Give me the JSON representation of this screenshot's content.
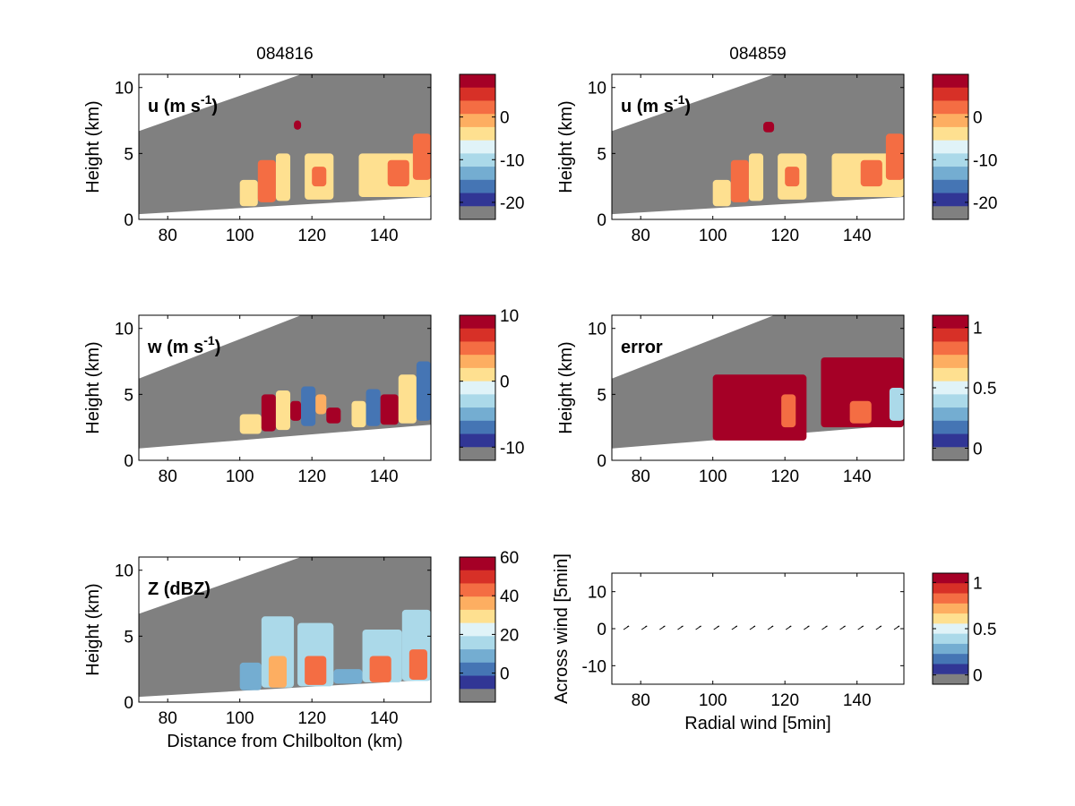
{
  "figure": {
    "titles": [
      "084816",
      "084859"
    ],
    "colormap": [
      "#a50026",
      "#d73027",
      "#f46d43",
      "#fdae61",
      "#fee090",
      "#e0f3f8",
      "#abd9e9",
      "#74add1",
      "#4575b4",
      "#313695",
      "#808080"
    ],
    "background_color": "#808080"
  },
  "chart_data": [
    {
      "type": "heatmap",
      "panel": "u left",
      "column_title": "084816",
      "label": "u (m s-1)",
      "label_main": "u (m s",
      "label_sup": "-1",
      "label_close": ")",
      "ylabel": "Height (km)",
      "xlabel": "",
      "xlim": [
        72,
        153
      ],
      "ylim": [
        0,
        11
      ],
      "xticks": [
        80,
        100,
        120,
        140
      ],
      "yticks": [
        0,
        5,
        10
      ],
      "colorbar": {
        "ticks": [
          0,
          -10,
          -20
        ],
        "tick_labels": [
          "0",
          "-10",
          "-20"
        ],
        "range": [
          -24,
          10
        ]
      },
      "top_boundary": [
        [
          72,
          6.7
        ],
        [
          117,
          11
        ]
      ],
      "bottom_boundary": [
        [
          72,
          0.4
        ],
        [
          153,
          1.7
        ]
      ],
      "cells": [
        {
          "x": [
            100,
            105
          ],
          "y": [
            1,
            3
          ],
          "v": -7
        },
        {
          "x": [
            105,
            110
          ],
          "y": [
            1.3,
            4.5
          ],
          "v": 1
        },
        {
          "x": [
            110,
            114
          ],
          "y": [
            1.4,
            5
          ],
          "v": -6
        },
        {
          "x": [
            115,
            117
          ],
          "y": [
            6.8,
            7.5
          ],
          "v": 9
        },
        {
          "x": [
            118,
            126
          ],
          "y": [
            1.5,
            5
          ],
          "v": -7
        },
        {
          "x": [
            120,
            124
          ],
          "y": [
            2.5,
            4
          ],
          "v": 2
        },
        {
          "x": [
            133,
            153
          ],
          "y": [
            1.7,
            5
          ],
          "v": -7
        },
        {
          "x": [
            141,
            147
          ],
          "y": [
            2.5,
            4.5
          ],
          "v": 1
        },
        {
          "x": [
            148,
            153
          ],
          "y": [
            3,
            6.5
          ],
          "v": 0
        }
      ]
    },
    {
      "type": "heatmap",
      "panel": "u right",
      "column_title": "084859",
      "label": "u (m s-1)",
      "label_main": "u (m s",
      "label_sup": "-1",
      "label_close": ")",
      "ylabel": "Height (km)",
      "xlabel": "",
      "xlim": [
        72,
        153
      ],
      "ylim": [
        0,
        11
      ],
      "xticks": [
        80,
        100,
        120,
        140
      ],
      "yticks": [
        0,
        5,
        10
      ],
      "colorbar": {
        "ticks": [
          0,
          -10,
          -20
        ],
        "tick_labels": [
          "0",
          "-10",
          "-20"
        ],
        "range": [
          -24,
          10
        ]
      },
      "top_boundary": [
        [
          72,
          6.7
        ],
        [
          117,
          11
        ]
      ],
      "bottom_boundary": [
        [
          72,
          0.4
        ],
        [
          153,
          1.7
        ]
      ],
      "cells": [
        {
          "x": [
            100,
            105
          ],
          "y": [
            1,
            3
          ],
          "v": -7
        },
        {
          "x": [
            105,
            110
          ],
          "y": [
            1.3,
            4.5
          ],
          "v": 1
        },
        {
          "x": [
            110,
            114
          ],
          "y": [
            1.4,
            5
          ],
          "v": -6
        },
        {
          "x": [
            114,
            117
          ],
          "y": [
            6.6,
            7.4
          ],
          "v": 9
        },
        {
          "x": [
            118,
            126
          ],
          "y": [
            1.5,
            5
          ],
          "v": -7
        },
        {
          "x": [
            120,
            124
          ],
          "y": [
            2.5,
            4
          ],
          "v": 2
        },
        {
          "x": [
            133,
            153
          ],
          "y": [
            1.7,
            5
          ],
          "v": -7
        },
        {
          "x": [
            141,
            147
          ],
          "y": [
            2.5,
            4.5
          ],
          "v": 1
        },
        {
          "x": [
            148,
            153
          ],
          "y": [
            3,
            6.5
          ],
          "v": 0
        }
      ]
    },
    {
      "type": "heatmap",
      "panel": "w",
      "column_title": "",
      "label": "w (m s-1)",
      "label_main": "w (m s",
      "label_sup": "-1",
      "label_close": ")",
      "ylabel": "Height (km)",
      "xlabel": "",
      "xlim": [
        72,
        153
      ],
      "ylim": [
        0,
        11
      ],
      "xticks": [
        80,
        100,
        120,
        140
      ],
      "yticks": [
        0,
        5,
        10
      ],
      "colorbar": {
        "ticks": [
          10,
          0,
          -10
        ],
        "tick_labels": [
          "10",
          "0",
          "-10"
        ],
        "range": [
          -12,
          10
        ]
      },
      "top_boundary": [
        [
          72,
          6.2
        ],
        [
          117,
          11
        ]
      ],
      "bottom_boundary": [
        [
          72,
          0.9
        ],
        [
          153,
          2.7
        ]
      ],
      "cells": [
        {
          "x": [
            100,
            106
          ],
          "y": [
            2,
            3.5
          ],
          "v": 1
        },
        {
          "x": [
            106,
            110
          ],
          "y": [
            2.2,
            5
          ],
          "v": 9
        },
        {
          "x": [
            110,
            114
          ],
          "y": [
            2.3,
            5.3
          ],
          "v": 0
        },
        {
          "x": [
            114,
            117
          ],
          "y": [
            3,
            4.5
          ],
          "v": 8
        },
        {
          "x": [
            117,
            121
          ],
          "y": [
            2.6,
            5.6
          ],
          "v": -9
        },
        {
          "x": [
            121,
            124
          ],
          "y": [
            3.5,
            5
          ],
          "v": 3
        },
        {
          "x": [
            124,
            128
          ],
          "y": [
            2.8,
            4
          ],
          "v": 9
        },
        {
          "x": [
            131,
            135
          ],
          "y": [
            2.5,
            4.5
          ],
          "v": 1
        },
        {
          "x": [
            135,
            139
          ],
          "y": [
            2.6,
            5.4
          ],
          "v": -8
        },
        {
          "x": [
            139,
            144
          ],
          "y": [
            2.7,
            5
          ],
          "v": 9
        },
        {
          "x": [
            144,
            149
          ],
          "y": [
            2.8,
            6.5
          ],
          "v": 0
        },
        {
          "x": [
            149,
            153
          ],
          "y": [
            3,
            7.5
          ],
          "v": -9
        }
      ]
    },
    {
      "type": "heatmap",
      "panel": "error",
      "column_title": "",
      "label": "error",
      "label_main": "error",
      "label_sup": "",
      "label_close": "",
      "ylabel": "Height (km)",
      "xlabel": "",
      "xlim": [
        72,
        153
      ],
      "ylim": [
        0,
        11
      ],
      "xticks": [
        80,
        100,
        120,
        140
      ],
      "yticks": [
        0,
        5,
        10
      ],
      "colorbar": {
        "ticks": [
          1,
          0.5,
          0
        ],
        "tick_labels": [
          "1",
          "0.5",
          "0"
        ],
        "range": [
          -0.1,
          1.1
        ]
      },
      "top_boundary": [
        [
          72,
          6.2
        ],
        [
          117,
          11
        ]
      ],
      "bottom_boundary": [
        [
          72,
          0.9
        ],
        [
          153,
          2.7
        ]
      ],
      "cells": [
        {
          "x": [
            100,
            126
          ],
          "y": [
            1.5,
            6.5
          ],
          "v": 1.05
        },
        {
          "x": [
            119,
            123
          ],
          "y": [
            2.5,
            5
          ],
          "v": 0.75
        },
        {
          "x": [
            130,
            153
          ],
          "y": [
            2.5,
            7.8
          ],
          "v": 1.05
        },
        {
          "x": [
            138,
            144
          ],
          "y": [
            2.8,
            4.5
          ],
          "v": 0.75
        },
        {
          "x": [
            149,
            153
          ],
          "y": [
            3,
            5.5
          ],
          "v": 0.3
        }
      ]
    },
    {
      "type": "heatmap",
      "panel": "Z",
      "column_title": "",
      "label": "Z (dBZ)",
      "label_main": "Z (dBZ)",
      "label_sup": "",
      "label_close": "",
      "ylabel": "Height (km)",
      "xlabel": "Distance from Chilbolton (km)",
      "xlim": [
        72,
        153
      ],
      "ylim": [
        0,
        11
      ],
      "xticks": [
        80,
        100,
        120,
        140
      ],
      "yticks": [
        0,
        5,
        10
      ],
      "colorbar": {
        "ticks": [
          60,
          40,
          20,
          0
        ],
        "tick_labels": [
          "60",
          "40",
          "20",
          "0"
        ],
        "range": [
          -15,
          60
        ]
      },
      "top_boundary": [
        [
          72,
          6.7
        ],
        [
          117,
          11
        ]
      ],
      "bottom_boundary": [
        [
          72,
          0.4
        ],
        [
          153,
          1.7
        ]
      ],
      "cells": [
        {
          "x": [
            100,
            106
          ],
          "y": [
            0.9,
            3
          ],
          "v": 5
        },
        {
          "x": [
            106,
            115
          ],
          "y": [
            1.1,
            6.5
          ],
          "v": 12
        },
        {
          "x": [
            108,
            113
          ],
          "y": [
            1.1,
            3.5
          ],
          "v": 32
        },
        {
          "x": [
            116,
            126
          ],
          "y": [
            1.2,
            6
          ],
          "v": 12
        },
        {
          "x": [
            118,
            124
          ],
          "y": [
            1.3,
            3.5
          ],
          "v": 38
        },
        {
          "x": [
            126,
            134
          ],
          "y": [
            1.4,
            2.5
          ],
          "v": 3
        },
        {
          "x": [
            134,
            145
          ],
          "y": [
            1.5,
            5.5
          ],
          "v": 12
        },
        {
          "x": [
            136,
            142
          ],
          "y": [
            1.5,
            3.5
          ],
          "v": 40
        },
        {
          "x": [
            145,
            153
          ],
          "y": [
            1.6,
            7
          ],
          "v": 12
        },
        {
          "x": [
            147,
            152
          ],
          "y": [
            1.7,
            4
          ],
          "v": 40
        }
      ]
    },
    {
      "type": "scatter",
      "panel": "wind",
      "xlabel": "Radial wind [5min]",
      "ylabel": "Across wind [5min]",
      "xlim": [
        72,
        153
      ],
      "ylim": [
        -15,
        15
      ],
      "xticks": [
        80,
        100,
        120,
        140
      ],
      "yticks": [
        -10,
        0,
        10
      ],
      "colorbar": {
        "ticks": [
          1,
          0.5,
          0
        ],
        "tick_labels": [
          "1",
          "0.5",
          "0"
        ],
        "range": [
          -0.1,
          1.1
        ]
      },
      "x": [
        76,
        81,
        86,
        91,
        96,
        101,
        106,
        111,
        116,
        121,
        126,
        131,
        136,
        141,
        146,
        151
      ],
      "y": [
        0,
        0,
        0,
        0,
        0,
        0,
        0,
        0,
        0,
        0,
        0,
        0,
        0,
        0,
        0,
        0
      ]
    }
  ]
}
